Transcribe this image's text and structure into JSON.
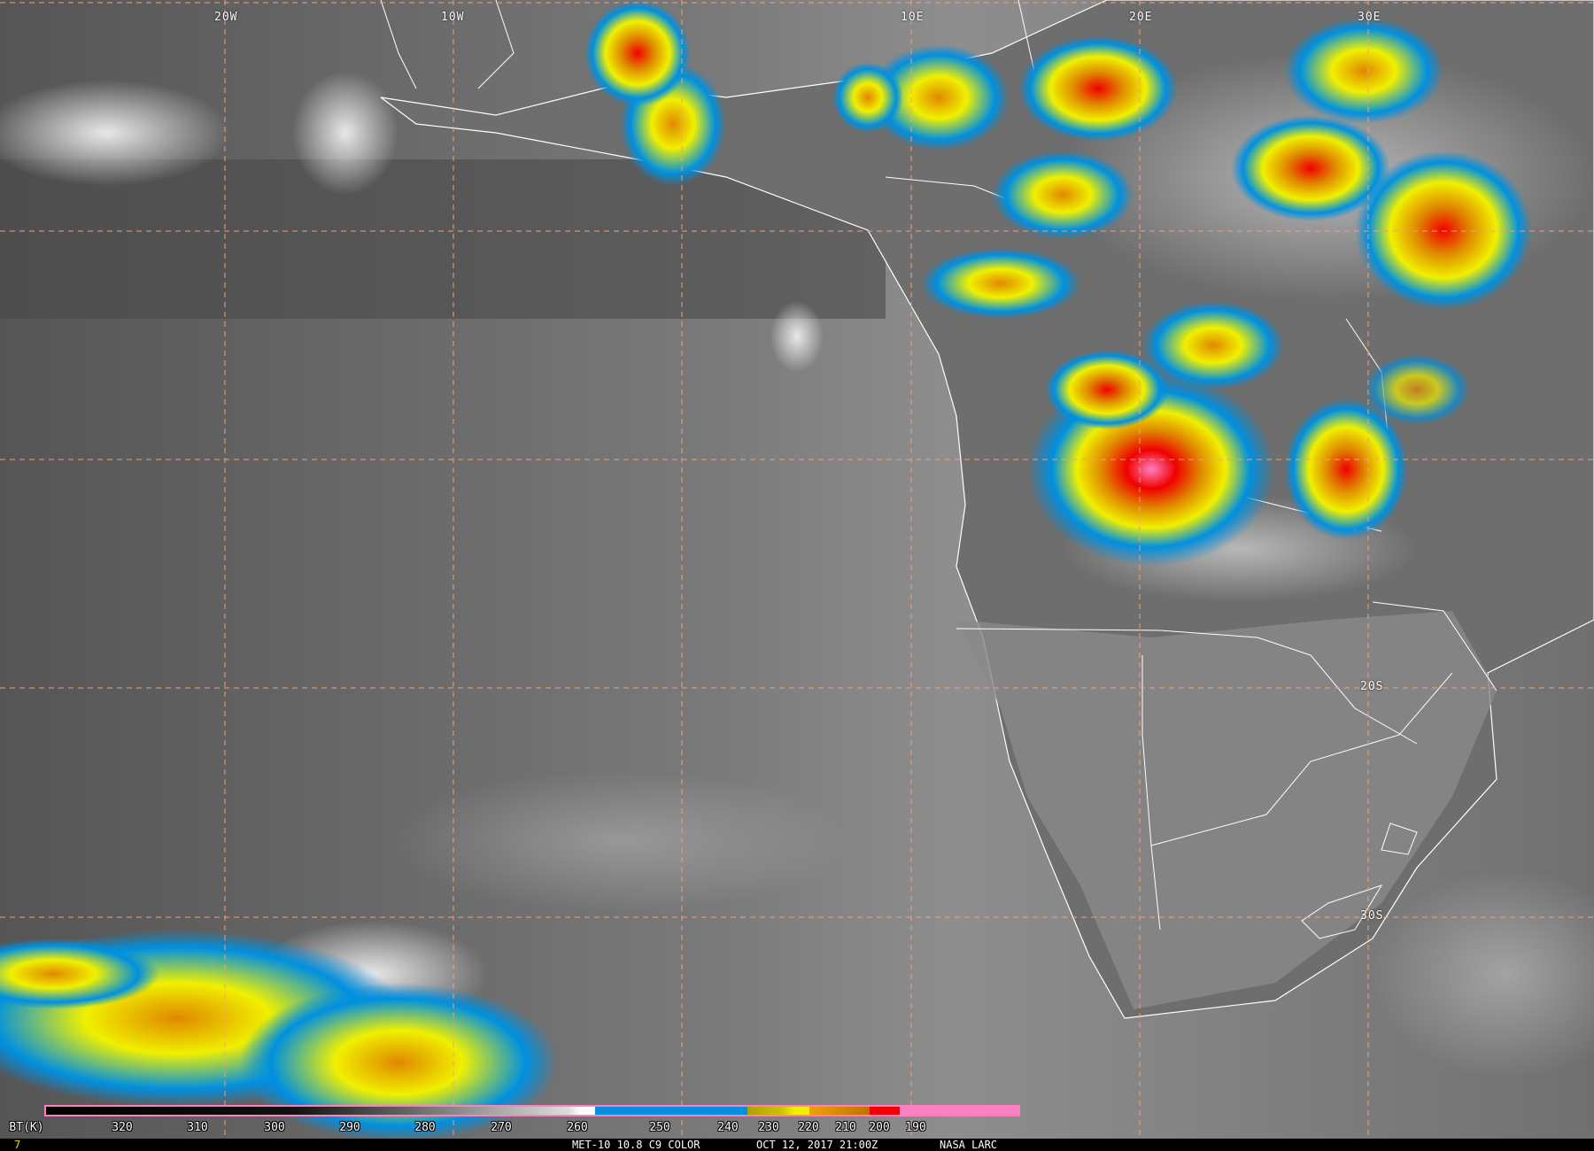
{
  "map": {
    "grid_labels": {
      "lon": [
        "20W",
        "10W",
        "10E",
        "20E",
        "30E"
      ],
      "lat": [
        "20S",
        "30S"
      ]
    },
    "gridline_color": "#f0a080",
    "border_color": "#ffffff"
  },
  "legend": {
    "unit_label": "BT(K)",
    "ticks": [
      "320",
      "310",
      "300",
      "290",
      "280",
      "270",
      "260",
      "250",
      "240",
      "230",
      "220",
      "210",
      "200",
      "190"
    ],
    "colors": {
      "blue": "#0090e0",
      "olive": "#b0a000",
      "yellow": "#f0f000",
      "orange": "#e08800",
      "red": "#f00000",
      "pink": "#ff80c0"
    }
  },
  "footer": {
    "frame": "7",
    "product": "MET-10 10.8 C9 COLOR",
    "datetime": "OCT 12, 2017 21:00Z",
    "credit": "NASA LARC"
  }
}
